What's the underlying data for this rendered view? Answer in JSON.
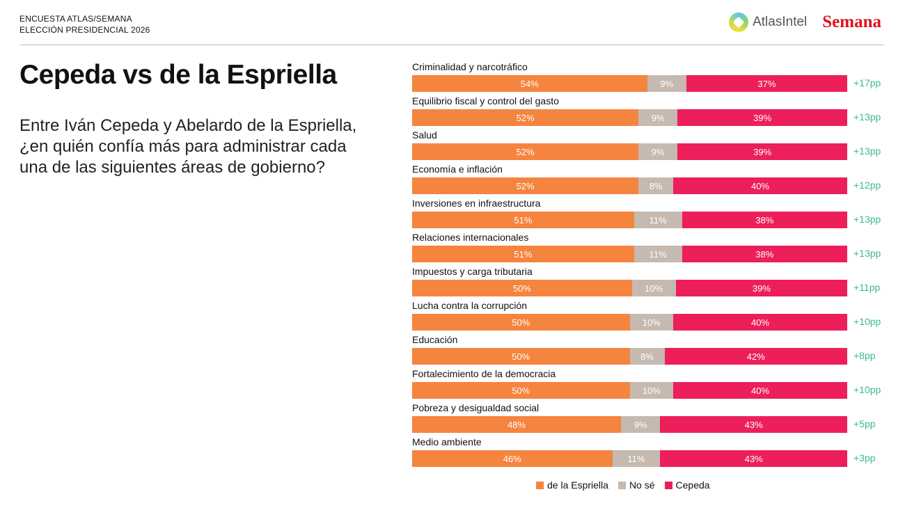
{
  "header": {
    "kicker_line1": "ENCUESTA ATLAS/SEMANA",
    "kicker_line2": "ELECCIÓN PRESIDENCIAL 2026",
    "logo_atlas": "AtlasIntel",
    "logo_semana": "Semana"
  },
  "title": "Cepeda vs de la Espriella",
  "question": "Entre Iván Cepeda y Abelardo de la Espriella, ¿en quién confía más para administrar cada una de las siguientes áreas de gobierno?",
  "colors": {
    "espriella": "#f5843f",
    "nose": "#c5b9b0",
    "cepeda": "#ec1f5b",
    "diff": "#3cb98e"
  },
  "chart_data": {
    "type": "bar",
    "orientation": "horizontal-stacked-100",
    "categories": [
      "Criminalidad y narcotráfico",
      "Equilibrio fiscal y control del gasto",
      "Salud",
      "Economía e inflación",
      "Inversiones en infraestructura",
      "Relaciones internacionales",
      "Impuestos y carga tributaria",
      "Lucha contra la corrupción",
      "Educación",
      "Fortalecimiento de la democracia",
      "Pobreza y desigualdad social",
      "Medio ambiente"
    ],
    "series": [
      {
        "name": "de la Espriella",
        "values": [
          54,
          52,
          52,
          52,
          51,
          51,
          50,
          50,
          50,
          50,
          48,
          46
        ]
      },
      {
        "name": "No sé",
        "values": [
          9,
          9,
          9,
          8,
          11,
          11,
          10,
          10,
          8,
          10,
          9,
          11
        ]
      },
      {
        "name": "Cepeda",
        "values": [
          37,
          39,
          39,
          40,
          38,
          38,
          39,
          40,
          42,
          40,
          43,
          43
        ]
      }
    ],
    "differences": [
      "+17pp",
      "+13pp",
      "+13pp",
      "+12pp",
      "+13pp",
      "+13pp",
      "+11pp",
      "+10pp",
      "+8pp",
      "+10pp",
      "+5pp",
      "+3pp"
    ],
    "legend": "bottom",
    "xlim": [
      0,
      100
    ]
  }
}
